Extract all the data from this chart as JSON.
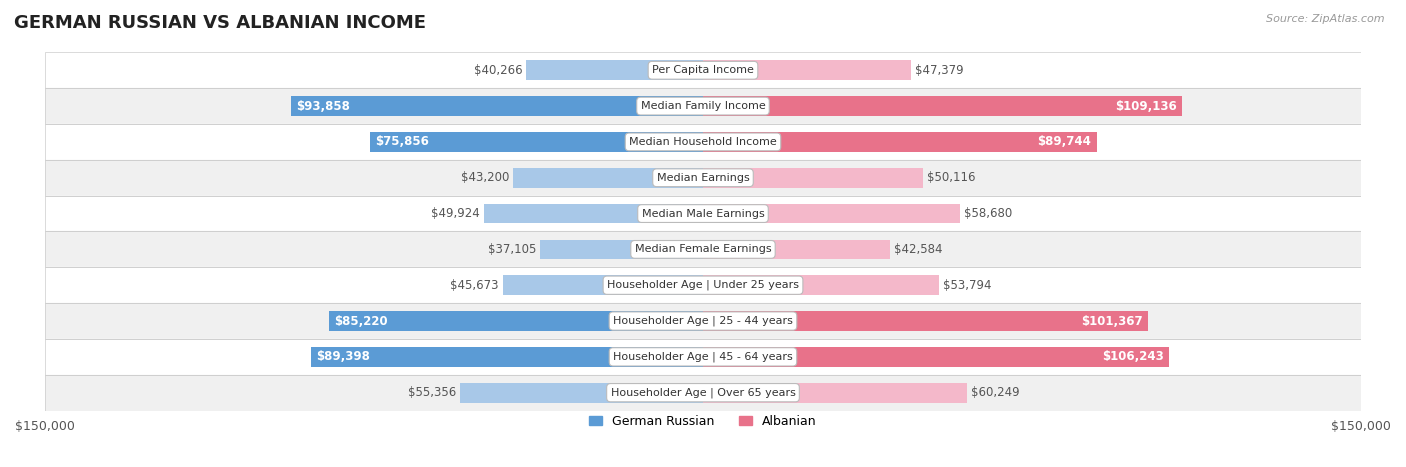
{
  "title": "GERMAN RUSSIAN VS ALBANIAN INCOME",
  "source": "Source: ZipAtlas.com",
  "max_val": 150000,
  "categories": [
    "Per Capita Income",
    "Median Family Income",
    "Median Household Income",
    "Median Earnings",
    "Median Male Earnings",
    "Median Female Earnings",
    "Householder Age | Under 25 years",
    "Householder Age | 25 - 44 years",
    "Householder Age | 45 - 64 years",
    "Householder Age | Over 65 years"
  ],
  "german_russian": [
    40266,
    93858,
    75856,
    43200,
    49924,
    37105,
    45673,
    85220,
    89398,
    55356
  ],
  "albanian": [
    47379,
    109136,
    89744,
    50116,
    58680,
    42584,
    53794,
    101367,
    106243,
    60249
  ],
  "german_russian_labels": [
    "$40,266",
    "$93,858",
    "$75,856",
    "$43,200",
    "$49,924",
    "$37,105",
    "$45,673",
    "$85,220",
    "$89,398",
    "$55,356"
  ],
  "albanian_labels": [
    "$47,379",
    "$109,136",
    "$89,744",
    "$50,116",
    "$58,680",
    "$42,584",
    "$53,794",
    "$101,367",
    "$106,243",
    "$60,249"
  ],
  "gr_dark": [
    false,
    true,
    true,
    false,
    false,
    false,
    false,
    true,
    true,
    false
  ],
  "alb_dark": [
    false,
    true,
    true,
    false,
    false,
    false,
    false,
    true,
    true,
    false
  ],
  "color_blue_light": "#a8c8e8",
  "color_blue_dark": "#5b9bd5",
  "color_pink_light": "#f4b8ca",
  "color_pink_dark": "#e8728a",
  "bg_row_light": "#f0f0f0",
  "bg_row_white": "#ffffff",
  "title_fontsize": 13,
  "label_fontsize": 8.5,
  "category_fontsize": 8,
  "axis_label_fontsize": 9
}
